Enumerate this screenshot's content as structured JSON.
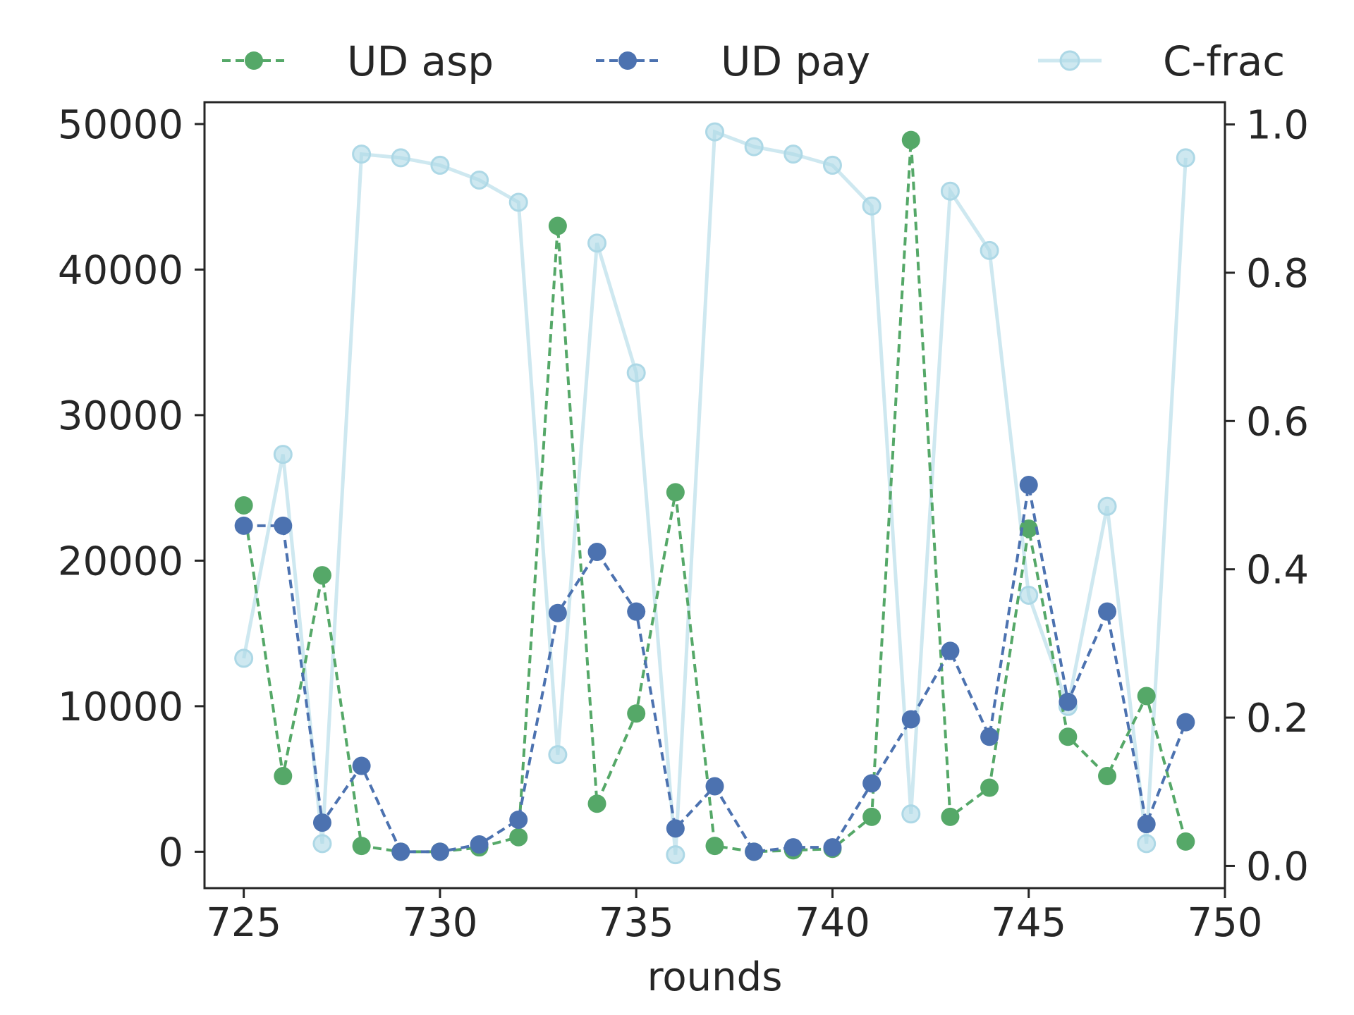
{
  "chart_data": {
    "type": "line",
    "xlabel": "rounds",
    "ylabel": "",
    "xlim": [
      724,
      750
    ],
    "ylim_left": [
      -2500,
      51500
    ],
    "ylim_right": [
      -0.03,
      1.03
    ],
    "x_ticks": [
      725,
      730,
      735,
      740,
      745,
      750
    ],
    "x_tick_labels": [
      "725",
      "730",
      "735",
      "740",
      "745",
      "750"
    ],
    "y_left_ticks": [
      0,
      10000,
      20000,
      30000,
      40000,
      50000
    ],
    "y_left_tick_labels": [
      "0",
      "10000",
      "20000",
      "30000",
      "40000",
      "50000"
    ],
    "y_right_ticks": [
      0.0,
      0.2,
      0.4,
      0.6,
      0.8,
      1.0
    ],
    "y_right_tick_labels": [
      "0.0",
      "0.2",
      "0.4",
      "0.6",
      "0.8",
      "1.0"
    ],
    "x": [
      725,
      726,
      727,
      728,
      729,
      730,
      731,
      732,
      733,
      734,
      735,
      736,
      737,
      738,
      739,
      740,
      741,
      742,
      743,
      744,
      745,
      746,
      747,
      748,
      749
    ],
    "grid": false,
    "legend_position": "top",
    "series": [
      {
        "name": "UD asp",
        "axis": "left",
        "style": "dashed",
        "color": "#55a868",
        "values": [
          23800,
          5200,
          19000,
          400,
          0,
          0,
          300,
          1000,
          43000,
          3300,
          9500,
          24700,
          400,
          0,
          100,
          200,
          2400,
          48900,
          2400,
          4400,
          22200,
          7900,
          5200,
          10700,
          700
        ]
      },
      {
        "name": "UD pay",
        "axis": "left",
        "style": "dashed",
        "color": "#4c72b0",
        "values": [
          22400,
          22400,
          2000,
          5900,
          0,
          0,
          500,
          2200,
          16400,
          20600,
          16500,
          1600,
          4500,
          0,
          300,
          300,
          4700,
          9100,
          13800,
          7900,
          25200,
          10300,
          16500,
          1900,
          8900
        ]
      },
      {
        "name": "C-frac",
        "axis": "right",
        "style": "solid",
        "color": "#add8e6",
        "values": [
          0.28,
          0.555,
          0.03,
          0.96,
          0.955,
          0.945,
          0.925,
          0.895,
          0.15,
          0.84,
          0.665,
          0.015,
          0.99,
          0.97,
          0.96,
          0.945,
          0.89,
          0.07,
          0.91,
          0.83,
          0.365,
          0.215,
          0.485,
          0.03,
          0.955
        ]
      }
    ]
  }
}
